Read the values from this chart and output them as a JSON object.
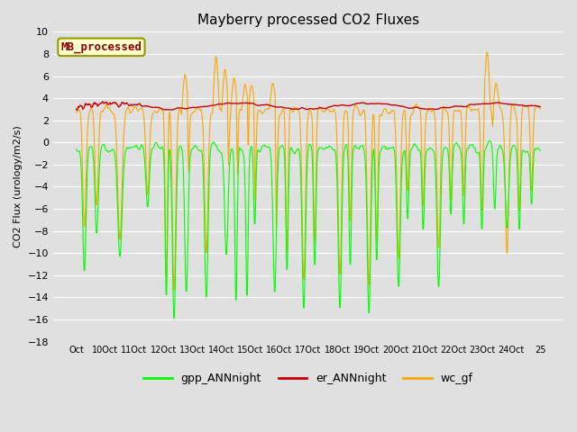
{
  "title": "Mayberry processed CO2 Fluxes",
  "ylabel": "CO2 Flux (urology/m2/s)",
  "ylim": [
    -18,
    10
  ],
  "yticks": [
    -18,
    -16,
    -14,
    -12,
    -10,
    -8,
    -6,
    -4,
    -2,
    0,
    2,
    4,
    6,
    8,
    10
  ],
  "xlabel_ticks": [
    "Oct",
    "10Oct",
    "11Oct",
    "12Oct",
    "13Oct",
    "14Oct",
    "15Oct",
    "16Oct",
    "17Oct",
    "18Oct",
    "19Oct",
    "20Oct",
    "21Oct",
    "22Oct",
    "23Oct",
    "24Oct",
    "25"
  ],
  "legend_label_box": "MB_processed",
  "legend_labels": [
    "gpp_ANNnight",
    "er_ANNnight",
    "wc_gf"
  ],
  "gpp_color": "#00ff00",
  "er_color": "#cc0000",
  "wc_color": "#ffa500",
  "box_label_color": "#8b0000",
  "box_face_color": "#ffffcc",
  "box_edge_color": "#999900",
  "bg_color": "#e0e0e0",
  "plot_bg_color": "#e0e0e0",
  "grid_color": "#ffffff",
  "figwidth": 6.4,
  "figheight": 4.8,
  "dpi": 100
}
